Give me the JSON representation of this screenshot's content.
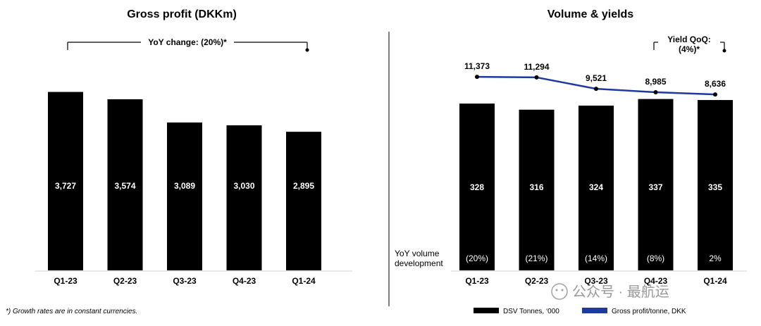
{
  "chart_data": [
    {
      "type": "bar",
      "title": "Gross profit (DKKm)",
      "categories": [
        "Q1-23",
        "Q2-23",
        "Q3-23",
        "Q4-23",
        "Q1-24"
      ],
      "values": [
        3727,
        3574,
        3089,
        3030,
        2895
      ],
      "labels": [
        "3,727",
        "3,574",
        "3,089",
        "3,030",
        "2,895"
      ],
      "annotation": "YoY change: (20%)*",
      "footnote": "*) Growth rates are in constant currencies.",
      "ylim": [
        0,
        4000
      ]
    },
    {
      "type": "bar",
      "title": "Volume & yields",
      "categories": [
        "Q1-23",
        "Q2-23",
        "Q3-23",
        "Q4-23",
        "Q1-24"
      ],
      "series": [
        {
          "name": "DSV Tonnes, ‘000",
          "type": "bar",
          "values": [
            328,
            316,
            324,
            337,
            335
          ],
          "labels": [
            "328",
            "316",
            "324",
            "337",
            "335"
          ],
          "color": "#000000"
        },
        {
          "name": "Gross profit/tonne, DKK",
          "type": "line",
          "values": [
            11373,
            11294,
            9521,
            8985,
            8636
          ],
          "labels": [
            "11,373",
            "11,294",
            "9,521",
            "8,985",
            "8,636"
          ],
          "color": "#1f3a9e"
        }
      ],
      "volume_development_label": "YoY volume development",
      "volume_development": [
        "(20%)",
        "(21%)",
        "(14%)",
        "(8%)",
        "2%"
      ],
      "annotation": "Yield QoQ: (4%)*",
      "ylim": [
        0,
        360
      ]
    }
  ],
  "watermark": "公众号 · 最航运"
}
